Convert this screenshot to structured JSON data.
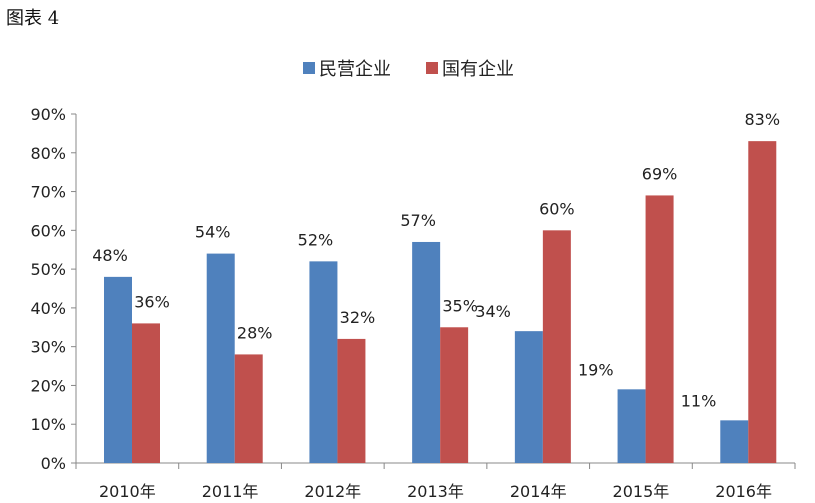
{
  "figure_label": "图表 4",
  "chart_data": {
    "type": "bar",
    "categories": [
      "2010年",
      "2011年",
      "2012年",
      "2013年",
      "2014年",
      "2015年",
      "2016年"
    ],
    "series": [
      {
        "name": "民营企业",
        "color": "#4f81bd",
        "values": [
          48,
          54,
          52,
          57,
          34,
          19,
          11
        ]
      },
      {
        "name": "国有企业",
        "color": "#c0504d",
        "values": [
          36,
          28,
          32,
          35,
          60,
          69,
          83
        ]
      }
    ],
    "data_labels": [
      [
        "48%",
        "54%",
        "52%",
        "57%",
        "34%",
        "19%",
        "11%"
      ],
      [
        "36%",
        "28%",
        "32%",
        "35%",
        "60%",
        "69%",
        "83%"
      ]
    ],
    "y_ticks": [
      "0%",
      "10%",
      "20%",
      "30%",
      "40%",
      "50%",
      "60%",
      "70%",
      "80%",
      "90%"
    ],
    "ylim": [
      0,
      90
    ],
    "title": "",
    "xlabel": "",
    "ylabel": "",
    "grid": false,
    "legend_position": "top"
  }
}
